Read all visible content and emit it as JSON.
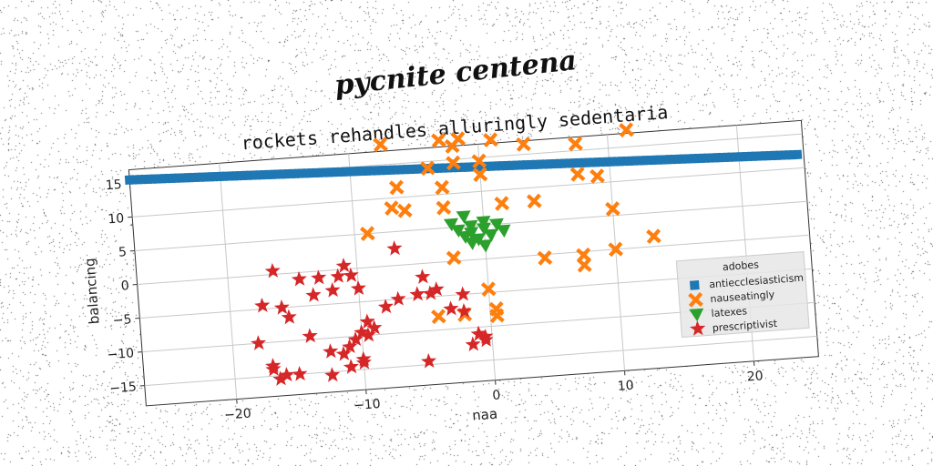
{
  "chart_data": {
    "type": "scatter",
    "suptitle": "pycnite centena",
    "title": "rockets rehandles alluringly sedentaria",
    "xlabel": "naa",
    "ylabel": "balancing",
    "xlim": [
      -27,
      25
    ],
    "ylim": [
      -18,
      17
    ],
    "xticks": [
      -20,
      -10,
      0,
      10,
      20
    ],
    "yticks": [
      -15,
      -10,
      -5,
      0,
      5,
      10,
      15
    ],
    "xtick_labels": [
      "−20",
      "−10",
      "0",
      "10",
      "20"
    ],
    "ytick_labels": [
      "−15",
      "−10",
      "−5",
      "0",
      "5",
      "10",
      "15"
    ],
    "grid": true,
    "legend_title": "adobes",
    "legend_position": "lower-right",
    "series": [
      {
        "name": "antiecclesiasticism",
        "marker": "square",
        "color": "#1f77b4",
        "line_from": [
          -27,
          15.5
        ],
        "line_to": [
          24.5,
          12.0
        ],
        "x": [],
        "y": []
      },
      {
        "name": "nauseatingly",
        "marker": "x",
        "color": "#ff7f0e",
        "x": [
          -7.5,
          -3,
          -1.5,
          -2,
          1,
          3.5,
          7.5,
          11.5,
          -6.5,
          -4,
          -2,
          0,
          -7,
          -3,
          0,
          7.5,
          9,
          -6,
          -3,
          1.5,
          4,
          10,
          -9,
          -2.5,
          4.5,
          7.5,
          10,
          13,
          7.5,
          0,
          -4,
          -2,
          0.5,
          0.5
        ],
        "y": [
          18,
          18,
          18,
          17,
          17.5,
          16.5,
          16,
          17.5,
          11.5,
          14,
          14.5,
          14.5,
          8.5,
          11,
          12.5,
          11.5,
          11,
          8,
          8,
          8,
          8,
          6,
          5,
          0.5,
          -0.5,
          -0.5,
          0,
          1.5,
          -2,
          -4.5,
          -8,
          -8,
          -7.5,
          -8.5
        ]
      },
      {
        "name": "latexes",
        "marker": "triangle-down",
        "color": "#2ca02c",
        "x": [
          -2.5,
          -1.5,
          -1,
          0,
          1,
          -2,
          -1,
          0,
          1.5,
          -1.5,
          -0.5,
          0.5,
          -1,
          0
        ],
        "y": [
          5.5,
          6.5,
          5,
          5.5,
          5,
          4.5,
          4,
          4.5,
          4,
          3.5,
          3,
          3.5,
          2.5,
          2
        ]
      },
      {
        "name": "prescriptivist",
        "marker": "star",
        "color": "#d62728",
        "x": [
          -16.5,
          -17.5,
          -16,
          -15.5,
          -14.5,
          -13,
          -13.5,
          -12,
          -11.5,
          -11,
          -10.5,
          -10,
          -18,
          -17,
          -16,
          -14,
          -12.5,
          -11,
          -10,
          -9.5,
          -9,
          -8,
          -7,
          -5.5,
          -5,
          -4,
          -3,
          -2,
          -1,
          -0.5,
          -7,
          -9.5,
          -10,
          -10.5,
          -11,
          -11.5,
          -17,
          -16.5,
          -15,
          -12.5,
          -10,
          -5,
          -2,
          -1.5,
          -1,
          -0.5,
          -4.5
        ],
        "y": [
          0.5,
          -4.5,
          -5,
          -6.5,
          -1,
          -1,
          -3.5,
          -3,
          -1,
          0.5,
          -1,
          -3,
          -10,
          -14,
          -15,
          -9.5,
          -12,
          -14.5,
          -14,
          -10,
          -9,
          -6,
          -5,
          -4.5,
          -2,
          -4,
          -7,
          -7.5,
          -11,
          -12,
          2.5,
          -8,
          -9.5,
          -10.5,
          -11.5,
          -12.5,
          -13.5,
          -15.5,
          -15,
          -15.5,
          -13.5,
          -14.5,
          -5,
          -12.5,
          -11,
          -11.5,
          -4.5
        ]
      }
    ]
  }
}
